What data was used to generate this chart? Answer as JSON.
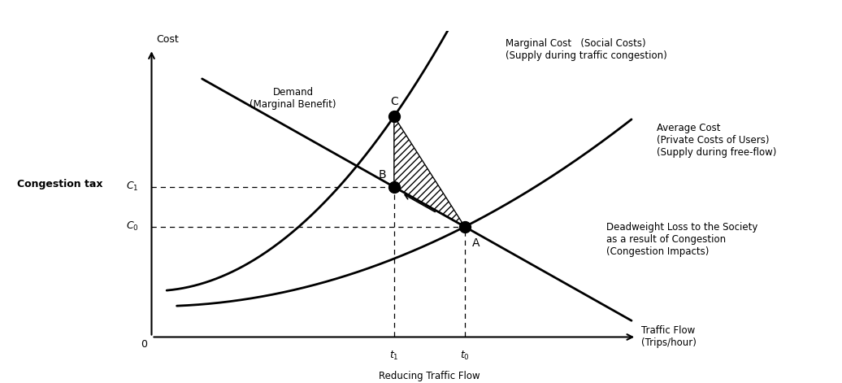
{
  "background_color": "#ffffff",
  "ax_background": "#ffffff",
  "xlim": [
    0,
    10
  ],
  "ylim": [
    0,
    10
  ],
  "t0": 6.2,
  "t1": 4.8,
  "C0": 3.6,
  "C1": 4.9,
  "C_mc": 7.2,
  "label_t0": "$t_0$",
  "label_t1": "$t_1$",
  "label_C0": "$C_0$",
  "label_C1": "$C_1$",
  "label_0": "0",
  "label_A": "A",
  "label_B": "B",
  "label_C": "C",
  "label_demand": "Demand\n(Marginal Benefit)",
  "label_mc": "Marginal Cost   (Social Costs)\n(Supply during traffic congestion)",
  "label_ac": "Average Cost\n(Private Costs of Users)\n(Supply during free-flow)",
  "label_congestion_tax": "Congestion tax",
  "label_deadweight": "Deadweight Loss to the Society\nas a result of Congestion\n(Congestion Impacts)",
  "label_reducing": "Reducing Traffic Flow",
  "label_cost": "Cost",
  "label_traffic_flow": "Traffic Flow\n(Trips/hour)"
}
